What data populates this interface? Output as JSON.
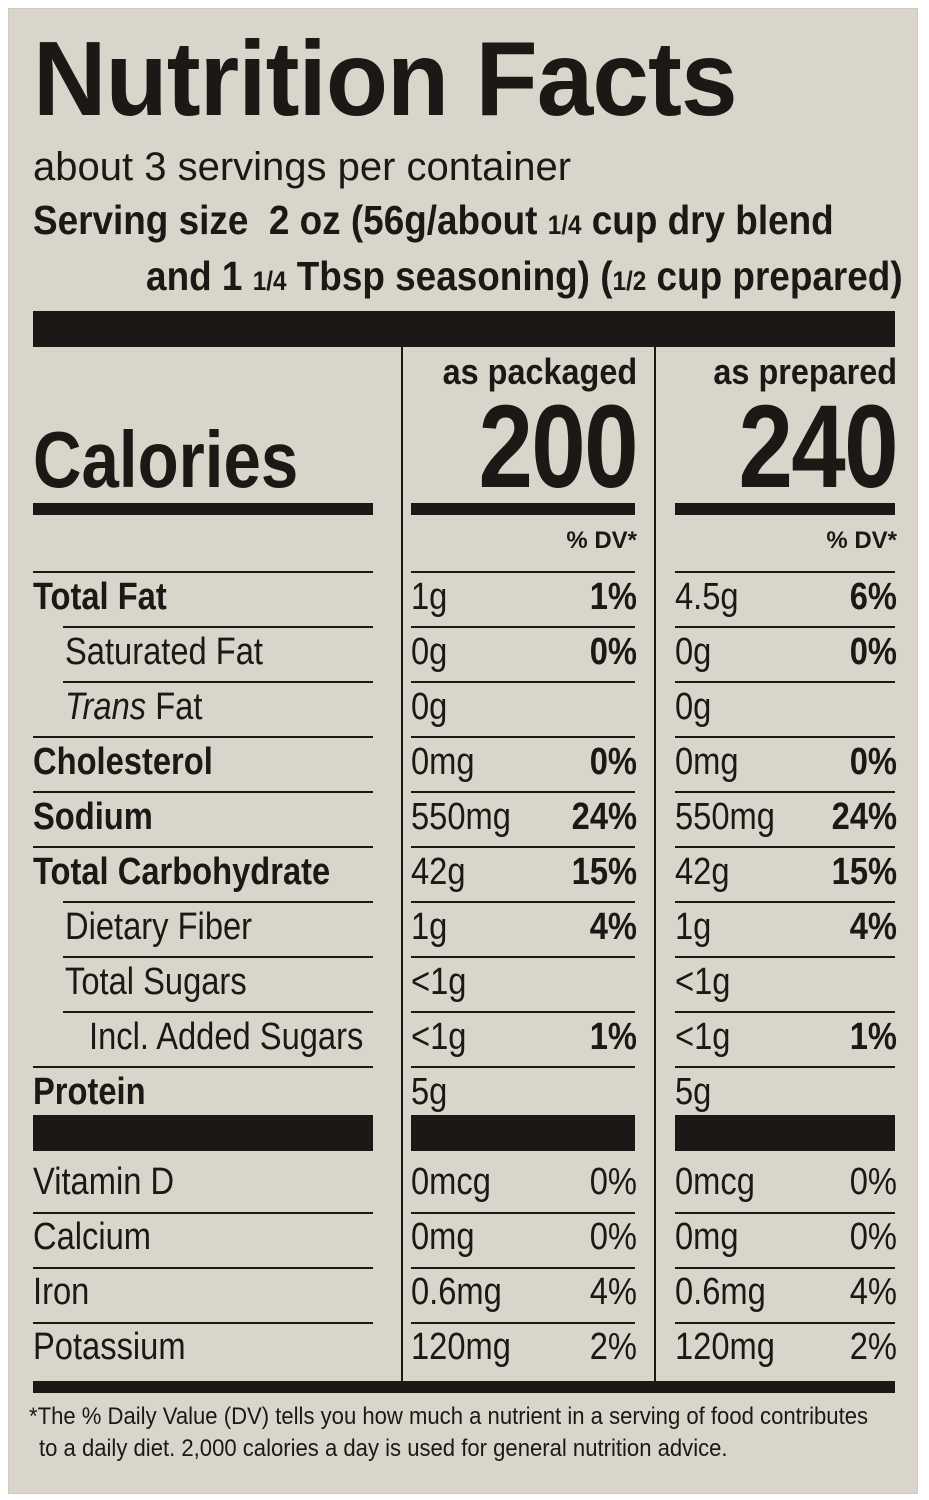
{
  "title": "Nutrition Facts",
  "servings_per_container": "about 3 servings per container",
  "serving_size": {
    "line1_label": "Serving size",
    "line1_value_a": "2 oz (56g/about",
    "line1_frac_a": "1/4",
    "line1_value_b": "cup dry blend",
    "line2_a": "and 1",
    "line2_frac_a": "1/4",
    "line2_b": "Tbsp seasoning) (",
    "line2_frac_b": "1/2",
    "line2_c": "cup prepared)"
  },
  "columns": {
    "packaged": {
      "header": "as packaged",
      "calories": "200"
    },
    "prepared": {
      "header": "as prepared",
      "calories": "240"
    }
  },
  "calories_label": "Calories",
  "dv_header": "% DV*",
  "nutrients": [
    {
      "label": "Total Fat",
      "bold": true,
      "indent": 0,
      "packaged_amount": "1g",
      "packaged_dv": "1%",
      "prepared_amount": "4.5g",
      "prepared_dv": "6%"
    },
    {
      "label": "Saturated Fat",
      "bold": false,
      "indent": 1,
      "packaged_amount": "0g",
      "packaged_dv": "0%",
      "prepared_amount": "0g",
      "prepared_dv": "0%"
    },
    {
      "label": "Fat",
      "italic_prefix": "Trans",
      "bold": false,
      "indent": 1,
      "packaged_amount": "0g",
      "packaged_dv": "",
      "prepared_amount": "0g",
      "prepared_dv": ""
    },
    {
      "label": "Cholesterol",
      "bold": true,
      "indent": 0,
      "packaged_amount": "0mg",
      "packaged_dv": "0%",
      "prepared_amount": "0mg",
      "prepared_dv": "0%"
    },
    {
      "label": "Sodium",
      "bold": true,
      "indent": 0,
      "packaged_amount": "550mg",
      "packaged_dv": "24%",
      "prepared_amount": "550mg",
      "prepared_dv": "24%"
    },
    {
      "label": "Total Carbohydrate",
      "bold": true,
      "indent": 0,
      "packaged_amount": "42g",
      "packaged_dv": "15%",
      "prepared_amount": "42g",
      "prepared_dv": "15%"
    },
    {
      "label": "Dietary Fiber",
      "bold": false,
      "indent": 1,
      "packaged_amount": "1g",
      "packaged_dv": "4%",
      "prepared_amount": "1g",
      "prepared_dv": "4%"
    },
    {
      "label": "Total Sugars",
      "bold": false,
      "indent": 1,
      "packaged_amount": "<1g",
      "packaged_dv": "",
      "prepared_amount": "<1g",
      "prepared_dv": ""
    },
    {
      "label": "Incl. Added Sugars",
      "bold": false,
      "indent": 2,
      "packaged_amount": "<1g",
      "packaged_dv": "1%",
      "prepared_amount": "<1g",
      "prepared_dv": "1%"
    },
    {
      "label": "Protein",
      "bold": true,
      "indent": 0,
      "packaged_amount": "5g",
      "packaged_dv": "",
      "prepared_amount": "5g",
      "prepared_dv": ""
    }
  ],
  "vitamins": [
    {
      "label": "Vitamin D",
      "packaged_amount": "0mcg",
      "packaged_dv": "0%",
      "prepared_amount": "0mcg",
      "prepared_dv": "0%"
    },
    {
      "label": "Calcium",
      "packaged_amount": "0mg",
      "packaged_dv": "0%",
      "prepared_amount": "0mg",
      "prepared_dv": "0%"
    },
    {
      "label": "Iron",
      "packaged_amount": "0.6mg",
      "packaged_dv": "4%",
      "prepared_amount": "0.6mg",
      "prepared_dv": "4%"
    },
    {
      "label": "Potassium",
      "packaged_amount": "120mg",
      "packaged_dv": "2%",
      "prepared_amount": "120mg",
      "prepared_dv": "2%"
    }
  ],
  "footnote": {
    "line1": "*The % Daily Value (DV) tells you how much a nutrient in a serving of food contributes",
    "line2": "to a daily diet. 2,000 calories a day is used for general nutrition advice."
  }
}
